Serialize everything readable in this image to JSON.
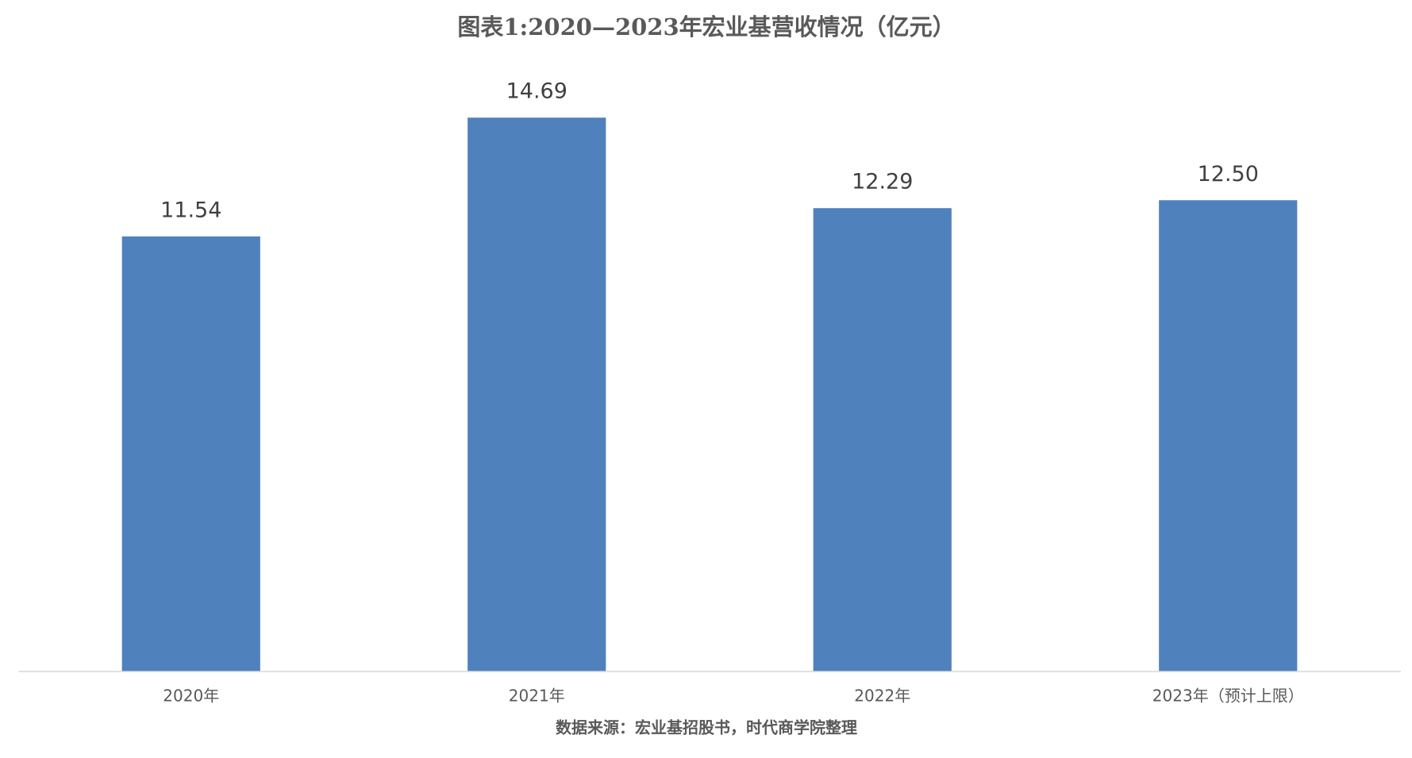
{
  "chart_data": {
    "type": "bar",
    "title": "图表1:2020—2023年宏业基营收情况（亿元）",
    "categories": [
      "2020年",
      "2021年",
      "2022年",
      "2023年（预计上限）"
    ],
    "values": [
      11.54,
      14.69,
      12.29,
      12.5
    ],
    "value_labels": [
      "11.54",
      "14.69",
      "12.29",
      "12.50"
    ],
    "color": "#4f81bd",
    "ylim": [
      0,
      16
    ],
    "source": "数据来源：宏业基招股书，时代商学院整理"
  }
}
